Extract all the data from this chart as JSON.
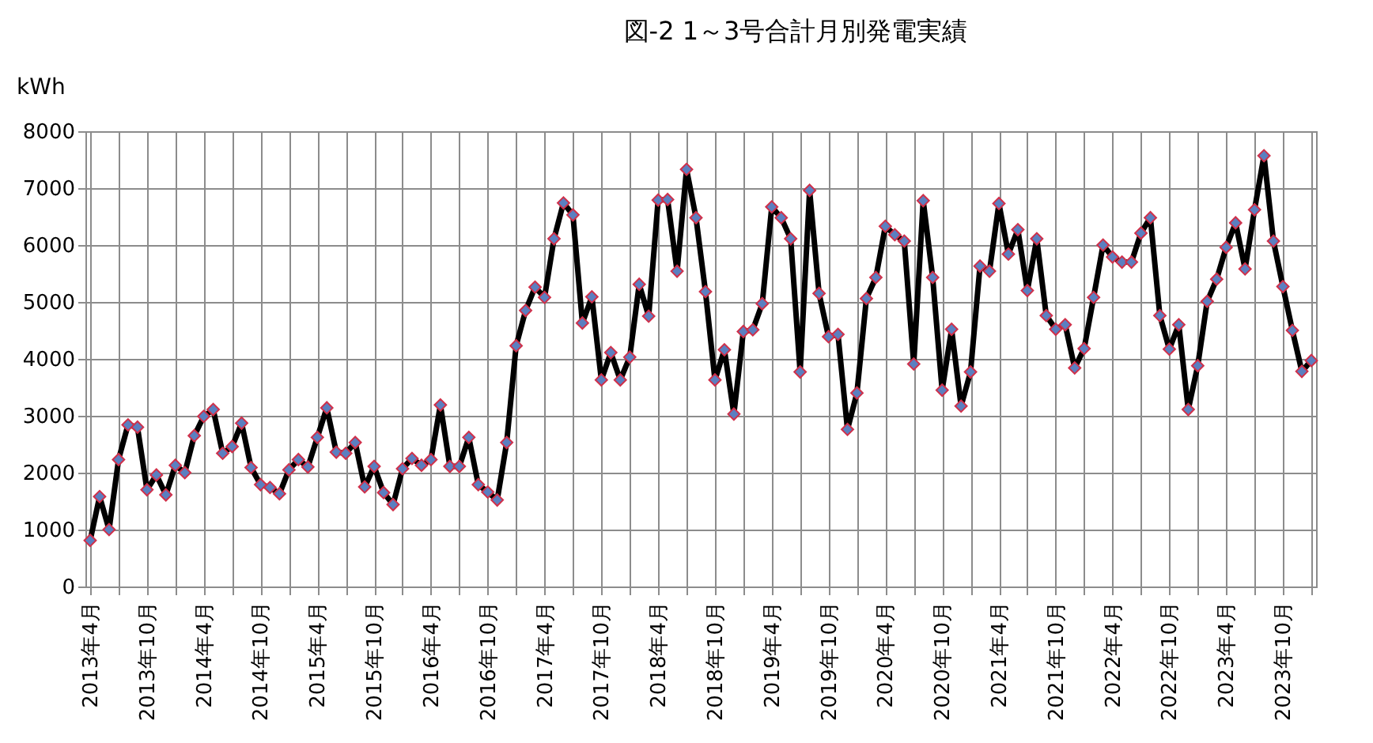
{
  "chart_data": {
    "type": "line",
    "title": "図-2  1～3号合計月別発電実績",
    "ylabel": "kWh",
    "categories": [
      "2013年4月",
      null,
      null,
      null,
      null,
      null,
      "2013年10月",
      null,
      null,
      null,
      null,
      null,
      "2014年4月",
      null,
      null,
      null,
      null,
      null,
      "2014年10月",
      null,
      null,
      null,
      null,
      null,
      "2015年4月",
      null,
      null,
      null,
      null,
      null,
      "2015年10月",
      null,
      null,
      null,
      null,
      null,
      "2016年4月",
      null,
      null,
      null,
      null,
      null,
      "2016年10月",
      null,
      null,
      null,
      null,
      null,
      "2017年4月",
      null,
      null,
      null,
      null,
      null,
      "2017年10月",
      null,
      null,
      null,
      null,
      null,
      "2018年4月",
      null,
      null,
      null,
      null,
      null,
      "2018年10月",
      null,
      null,
      null,
      null,
      null,
      "2019年4月",
      null,
      null,
      null,
      null,
      null,
      "2019年10月",
      null,
      null,
      null,
      null,
      null,
      "2020年4月",
      null,
      null,
      null,
      null,
      null,
      "2020年10月",
      null,
      null,
      null,
      null,
      null,
      "2021年4月",
      null,
      null,
      null,
      null,
      null,
      "2021年10月",
      null,
      null,
      null,
      null,
      null,
      "2022年4月",
      null,
      null,
      null,
      null,
      null,
      "2022年10月",
      null,
      null,
      null,
      null,
      null,
      "2023年4月",
      null,
      null,
      null,
      null,
      null,
      "2023年10月",
      null,
      null,
      null
    ],
    "series": [
      {
        "color": "#000000",
        "values": [
          810,
          1580,
          1000,
          2230,
          2840,
          2800,
          1700,
          1960,
          1610,
          2130,
          2000,
          2650,
          2990,
          3110,
          2340,
          2460,
          2870,
          2090,
          1790,
          1740,
          1630,
          2050,
          2230,
          2100,
          2620,
          3140,
          2360,
          2340,
          2530,
          1750,
          2110,
          1650,
          1440,
          2070,
          2250,
          2130,
          2230,
          3190,
          2110,
          2110,
          2620,
          1790,
          1660,
          1520,
          2530,
          4230,
          4850,
          5260,
          5080,
          6110,
          6740,
          6530,
          4630,
          5090,
          3630,
          4110,
          3630,
          4030,
          5310,
          4750,
          6790,
          6800,
          5540,
          7330,
          6480,
          5180,
          3630,
          4160,
          3030,
          4480,
          4510,
          4970,
          6670,
          6480,
          6110,
          3770,
          6960,
          5150,
          4390,
          4430,
          2760,
          3400,
          5060,
          5430,
          6330,
          6180,
          6070,
          3910,
          6780,
          5430,
          3450,
          4520,
          3170,
          3770,
          5630,
          5540,
          6730,
          5840,
          6270,
          5200,
          6110,
          4760,
          4520,
          4600,
          3840,
          4180,
          5080,
          6000,
          5790,
          5700,
          5700,
          6210,
          6480,
          4760,
          4170,
          4600,
          3110,
          3880,
          5010,
          5400,
          5960,
          6390,
          5580,
          6620,
          7570,
          6070,
          5270,
          4500,
          3780,
          3970
        ]
      }
    ],
    "ylim": [
      0,
      8000
    ],
    "yticks": [
      0,
      1000,
      2000,
      3000,
      4000,
      5000,
      6000,
      7000,
      8000
    ],
    "grid": true,
    "marker": "diamond",
    "line_style": "solid"
  }
}
